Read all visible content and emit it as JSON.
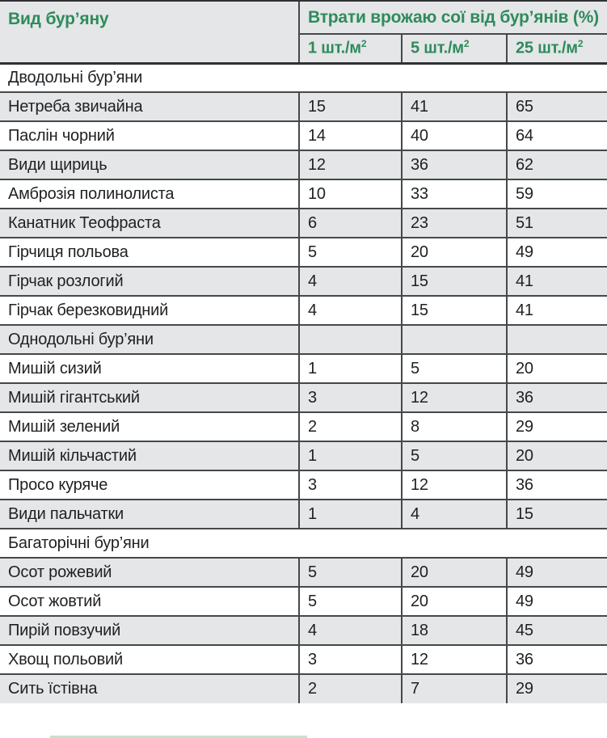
{
  "colors": {
    "accent_green": "#2e8b5c",
    "row_shade": "#e4e6e7",
    "header_bg": "#e4e6e7",
    "grid_line": "#45484a"
  },
  "table": {
    "header": {
      "weed_type_label": "Вид бур’яну",
      "loss_group_label": "Втрати врожаю сої від бур’янів (%)",
      "subcolumns": [
        {
          "key": "1",
          "label": "1 шт./м",
          "sup": "2"
        },
        {
          "key": "5",
          "label": "5 шт./м",
          "sup": "2"
        },
        {
          "key": "25",
          "label": "25 шт./м",
          "sup": "2"
        }
      ]
    },
    "rows": [
      {
        "type": "section",
        "label": "Дводольні бур’яни"
      },
      {
        "type": "data",
        "name": "Нетреба звичайна",
        "values": [
          "15",
          "41",
          "65"
        ]
      },
      {
        "type": "data",
        "name": "Паслін чорний",
        "values": [
          "14",
          "40",
          "64"
        ]
      },
      {
        "type": "data",
        "name": "Види щириць",
        "values": [
          "12",
          "36",
          "62"
        ]
      },
      {
        "type": "data",
        "name": "Амброзія полинолиста",
        "values": [
          "10",
          "33",
          "59"
        ]
      },
      {
        "type": "data",
        "name": "Канатник Теофраста",
        "values": [
          "6",
          "23",
          "51"
        ]
      },
      {
        "type": "data",
        "name": "Гірчиця польова",
        "values": [
          "5",
          "20",
          "49"
        ]
      },
      {
        "type": "data",
        "name": "Гірчак розлогий",
        "values": [
          "4",
          "15",
          "41"
        ]
      },
      {
        "type": "data",
        "name": "Гірчак березковидний",
        "values": [
          "4",
          "15",
          "41"
        ]
      },
      {
        "type": "section-cells",
        "label": "Однодольні бур’яни",
        "values": [
          "",
          "",
          ""
        ]
      },
      {
        "type": "data",
        "name": "Мишій сизий",
        "values": [
          "1",
          "5",
          "20"
        ]
      },
      {
        "type": "data",
        "name": "Мишій гігантський",
        "values": [
          "3",
          "12",
          "36"
        ]
      },
      {
        "type": "data",
        "name": "Мишій зелений",
        "values": [
          "2",
          "8",
          "29"
        ]
      },
      {
        "type": "data",
        "name": "Мишій кільчастий",
        "values": [
          "1",
          "5",
          "20"
        ]
      },
      {
        "type": "data",
        "name": "Просо куряче",
        "values": [
          "3",
          "12",
          "36"
        ]
      },
      {
        "type": "data",
        "name": "Види пальчатки",
        "values": [
          "1",
          "4",
          "15"
        ]
      },
      {
        "type": "section",
        "label": "Багаторічні бур’яни"
      },
      {
        "type": "data",
        "name": "Осот рожевий",
        "values": [
          "5",
          "20",
          "49"
        ]
      },
      {
        "type": "data",
        "name": "Осот жовтий",
        "values": [
          "5",
          "20",
          "49"
        ]
      },
      {
        "type": "data",
        "name": "Пирій повзучий",
        "values": [
          "4",
          "18",
          "45"
        ]
      },
      {
        "type": "data",
        "name": "Хвощ польовий",
        "values": [
          "3",
          "12",
          "36"
        ]
      },
      {
        "type": "data",
        "name": "Сить їстівна",
        "values": [
          "2",
          "7",
          "29"
        ]
      }
    ]
  }
}
